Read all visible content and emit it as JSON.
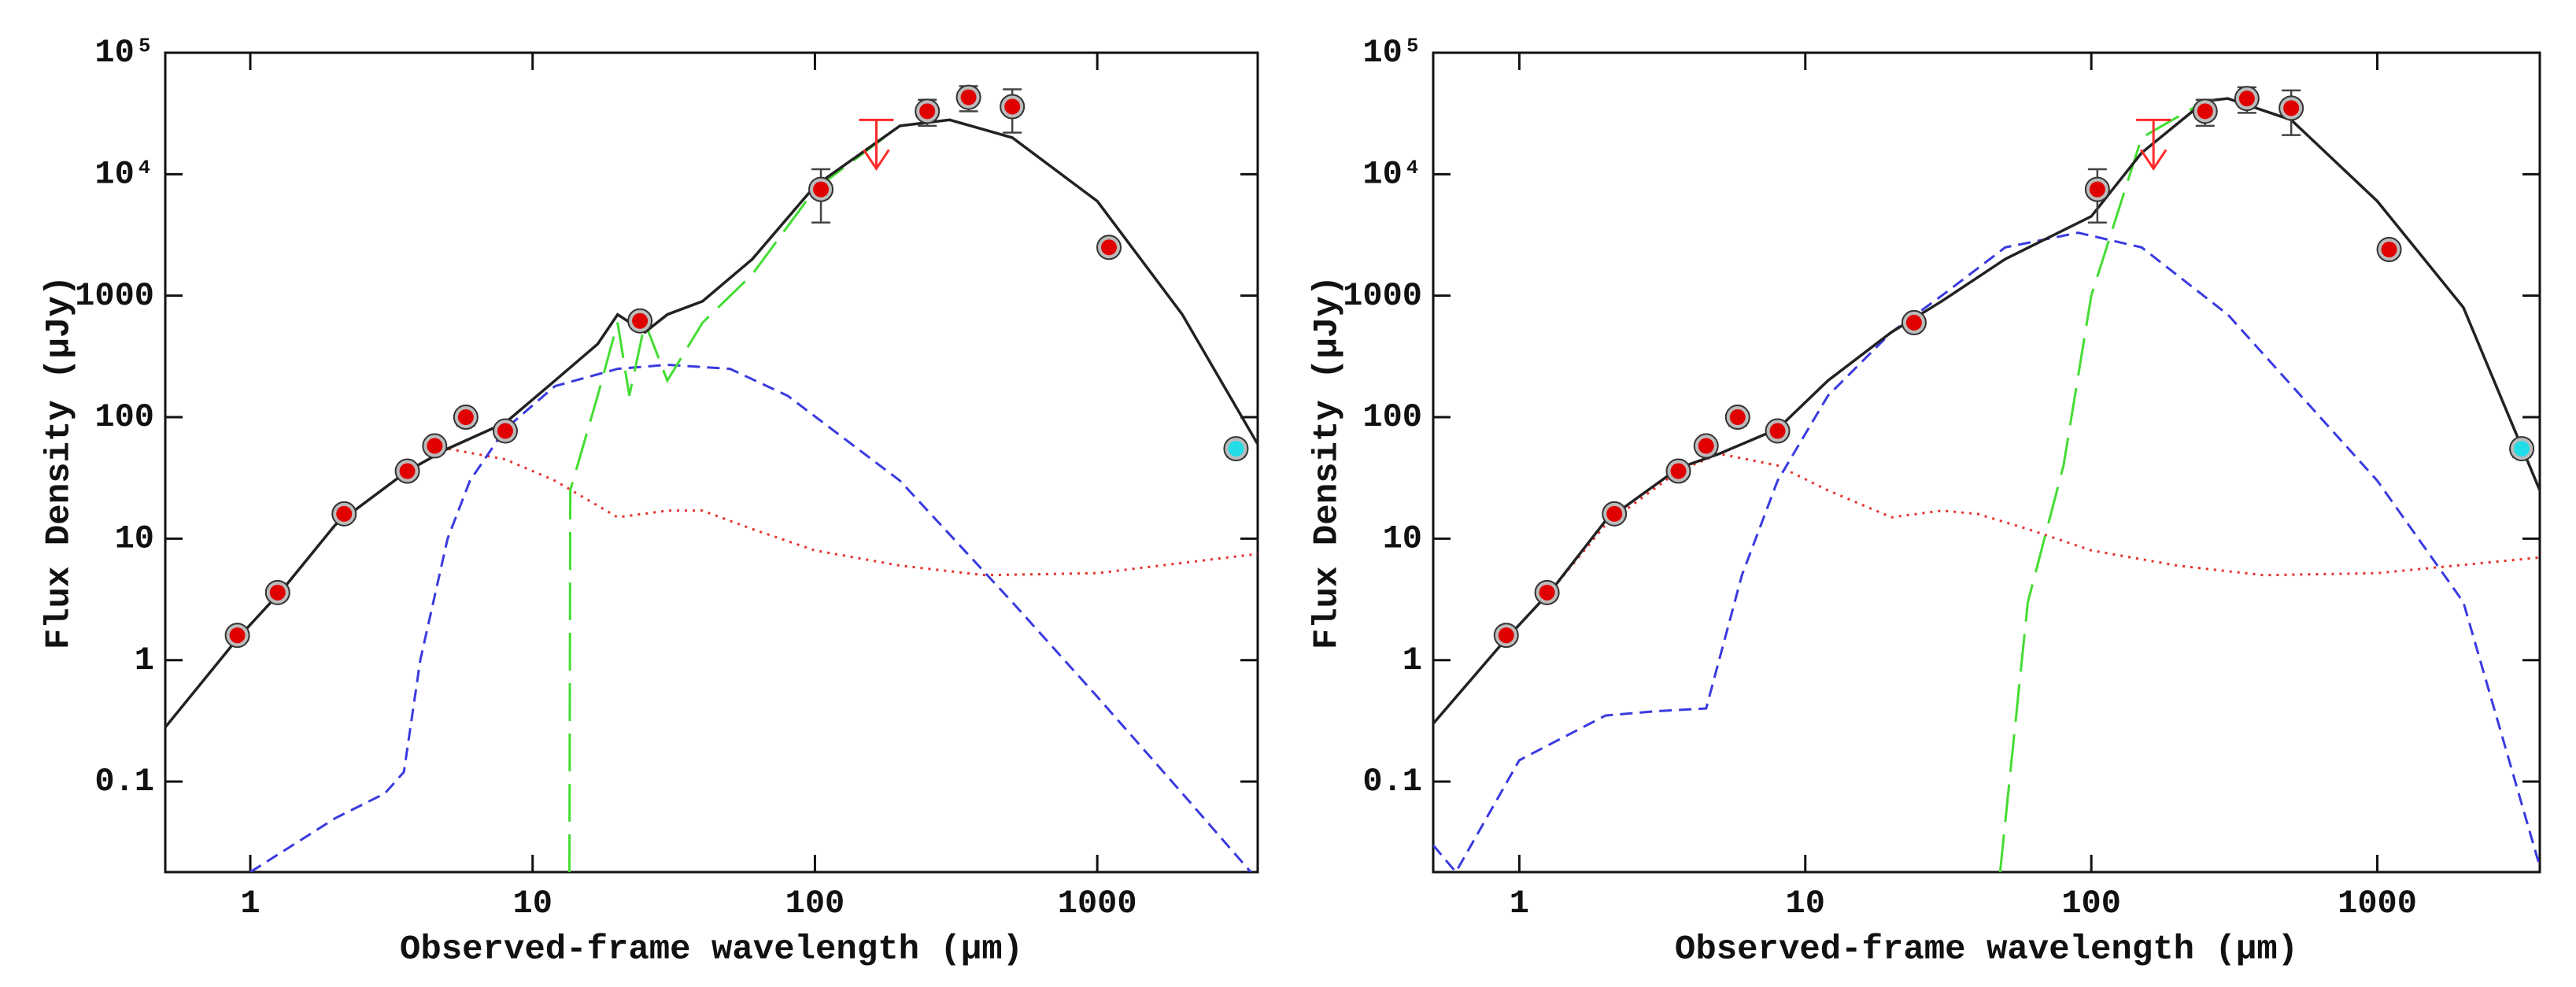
{
  "chart_data": [
    {
      "type": "line",
      "log_x": true,
      "log_y": true,
      "xlabel": "Observed-frame wavelength (μm)",
      "ylabel": "Flux Density (μJy)",
      "xlim": [
        0.5,
        3700
      ],
      "ylim": [
        0.018,
        100000
      ],
      "xticks": [
        1,
        10,
        100,
        1000
      ],
      "yticks": [
        0.1,
        1,
        10,
        100,
        1000,
        {
          "value": 10000,
          "label": "10⁴"
        },
        {
          "value": 100000,
          "label": "10⁵"
        }
      ],
      "series": [
        {
          "kind": "line",
          "style": "dotted",
          "color": "#e8302a",
          "x": [
            0.5,
            0.9,
            1.3,
            2,
            3.6,
            5,
            8,
            12,
            20,
            30,
            40,
            60,
            100,
            200,
            400,
            1000,
            3700
          ],
          "values": [
            0.28,
            1.5,
            3.8,
            13,
            36,
            55,
            45,
            30,
            15,
            17,
            17,
            12,
            8,
            6,
            5,
            5.2,
            7.5
          ]
        },
        {
          "kind": "line",
          "style": "dashed",
          "color": "#3a3ae0",
          "x": [
            1,
            2,
            3,
            3.5,
            4,
            5,
            6,
            8,
            12,
            20,
            30,
            50,
            80,
            200,
            500,
            1000,
            2000,
            3500
          ],
          "values": [
            0.018,
            0.05,
            0.08,
            0.12,
            1,
            10,
            30,
            80,
            180,
            250,
            270,
            250,
            150,
            30,
            3,
            0.5,
            0.08,
            0.018
          ]
        },
        {
          "kind": "line",
          "style": "longdash",
          "color": "#44dd33",
          "x": [
            13.5,
            13.6,
            17,
            20,
            22,
            25,
            30,
            40,
            60,
            100,
            200,
            300,
            500,
            1000,
            2000,
            3700
          ],
          "values": [
            0.018,
            25,
            150,
            600,
            150,
            600,
            200,
            600,
            1500,
            7500,
            25000,
            28000,
            20000,
            6000,
            700,
            60
          ]
        },
        {
          "kind": "line",
          "style": "solid",
          "color": "#222222",
          "x": [
            0.5,
            0.9,
            1.3,
            2,
            3.6,
            5,
            8,
            12,
            17,
            20,
            25,
            30,
            40,
            60,
            100,
            200,
            300,
            500,
            1000,
            2000,
            3700
          ],
          "values": [
            0.28,
            1.5,
            3.8,
            13,
            36,
            55,
            90,
            200,
            400,
            700,
            500,
            700,
            900,
            2000,
            8000,
            25000,
            28000,
            20000,
            6000,
            700,
            60
          ]
        },
        {
          "kind": "points",
          "color": "#e00000",
          "x": [
            0.9,
            1.25,
            2.15,
            3.6,
            4.5,
            5.8,
            8,
            24,
            105,
            250,
            350,
            500,
            1100
          ],
          "values": [
            1.6,
            3.6,
            16,
            36,
            58,
            100,
            77,
            620,
            7500,
            33000,
            43000,
            36000,
            2500
          ],
          "errors": [
            0.2,
            0.5,
            2,
            5,
            8,
            15,
            10,
            80,
            3500,
            8000,
            10000,
            14000,
            300
          ]
        },
        {
          "kind": "points",
          "color": "#22dde8",
          "x": [
            3100
          ],
          "values": [
            55
          ],
          "errors": [
            8
          ]
        },
        {
          "kind": "upper_limit",
          "color": "#ff2a2a",
          "x": [
            165
          ],
          "values": [
            28000
          ]
        }
      ]
    },
    {
      "type": "line",
      "log_x": true,
      "log_y": true,
      "xlabel": "Observed-frame wavelength (μm)",
      "ylabel": "Flux Density (μJy)",
      "xlim": [
        0.5,
        3700
      ],
      "ylim": [
        0.018,
        100000
      ],
      "xticks": [
        1,
        10,
        100,
        1000
      ],
      "yticks": [
        0.1,
        1,
        10,
        100,
        1000,
        {
          "value": 10000,
          "label": "10⁴"
        },
        {
          "value": 100000,
          "label": "10⁵"
        }
      ],
      "series": [
        {
          "kind": "line",
          "style": "dotted",
          "color": "#e8302a",
          "x": [
            0.5,
            0.9,
            1.3,
            2,
            3.6,
            5,
            8,
            12,
            20,
            30,
            40,
            60,
            100,
            200,
            400,
            1000,
            3700
          ],
          "values": [
            0.3,
            1.5,
            3.8,
            13,
            36,
            50,
            40,
            25,
            15,
            17,
            16,
            12,
            8,
            6,
            5,
            5.2,
            7
          ]
        },
        {
          "kind": "line",
          "style": "dashed",
          "color": "#3a3ae0",
          "x": [
            0.5,
            0.6,
            1,
            2,
            3,
            4.5,
            6,
            8,
            12,
            20,
            30,
            50,
            90,
            150,
            300,
            1000,
            2000,
            3700
          ],
          "values": [
            0.03,
            0.018,
            0.15,
            0.35,
            0.38,
            0.4,
            5,
            30,
            150,
            500,
            1000,
            2500,
            3300,
            2500,
            700,
            30,
            3,
            0.02
          ]
        },
        {
          "kind": "line",
          "style": "longdash",
          "color": "#44dd33",
          "x": [
            48,
            60,
            80,
            100,
            150,
            250,
            300,
            500,
            1000,
            2000,
            3700
          ],
          "values": [
            0.018,
            3,
            40,
            1000,
            20000,
            40000,
            42000,
            28000,
            6000,
            800,
            25
          ]
        },
        {
          "kind": "line",
          "style": "solid",
          "color": "#222222",
          "x": [
            0.5,
            0.9,
            1.3,
            2,
            3.6,
            5,
            8,
            12,
            20,
            30,
            50,
            100,
            150,
            250,
            300,
            500,
            1000,
            2000,
            3700
          ],
          "values": [
            0.3,
            1.5,
            3.8,
            14,
            38,
            50,
            80,
            200,
            500,
            900,
            2000,
            4500,
            15000,
            40000,
            42000,
            28000,
            6000,
            800,
            25
          ]
        },
        {
          "kind": "points",
          "color": "#e00000",
          "x": [
            0.9,
            1.25,
            2.15,
            3.6,
            4.5,
            5.8,
            8,
            24,
            105,
            250,
            350,
            500,
            1100
          ],
          "values": [
            1.6,
            3.6,
            16,
            36,
            58,
            100,
            77,
            600,
            7500,
            33000,
            42000,
            35000,
            2400
          ],
          "errors": [
            0.2,
            0.5,
            2,
            5,
            8,
            15,
            10,
            70,
            3500,
            8000,
            10000,
            14000,
            300
          ]
        },
        {
          "kind": "points",
          "color": "#22dde8",
          "x": [
            3200
          ],
          "values": [
            55
          ],
          "errors": [
            8
          ]
        },
        {
          "kind": "upper_limit",
          "color": "#ff2a2a",
          "x": [
            165
          ],
          "values": [
            28000
          ]
        }
      ]
    }
  ]
}
